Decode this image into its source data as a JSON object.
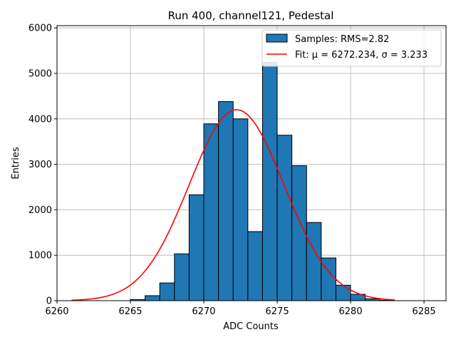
{
  "chart_data": {
    "type": "bar",
    "title": "Run 400, channel121, Pedestal",
    "xlabel": "ADC Counts",
    "ylabel": "Entries",
    "xlim": [
      6260,
      6286.5
    ],
    "ylim": [
      0,
      6050
    ],
    "xticks": [
      "6260",
      "6265",
      "6270",
      "6275",
      "6280",
      "6285"
    ],
    "yticks": [
      "0",
      "1000",
      "2000",
      "3000",
      "4000",
      "5000",
      "6000"
    ],
    "grid": true,
    "legend_position": "top-right",
    "bin_width": 1,
    "bins": [
      {
        "x0": 6264,
        "count": 0
      },
      {
        "x0": 6265,
        "count": 25
      },
      {
        "x0": 6266,
        "count": 110
      },
      {
        "x0": 6267,
        "count": 390
      },
      {
        "x0": 6268,
        "count": 1030
      },
      {
        "x0": 6269,
        "count": 2330
      },
      {
        "x0": 6270,
        "count": 3890
      },
      {
        "x0": 6271,
        "count": 4380
      },
      {
        "x0": 6272,
        "count": 4000
      },
      {
        "x0": 6273,
        "count": 1520
      },
      {
        "x0": 6274,
        "count": 5240
      },
      {
        "x0": 6275,
        "count": 3640
      },
      {
        "x0": 6276,
        "count": 2970
      },
      {
        "x0": 6277,
        "count": 1720
      },
      {
        "x0": 6278,
        "count": 940
      },
      {
        "x0": 6279,
        "count": 340
      },
      {
        "x0": 6280,
        "count": 140
      },
      {
        "x0": 6281,
        "count": 40
      },
      {
        "x0": 6282,
        "count": 10
      }
    ],
    "series": [
      {
        "name": "Samples: RMS=2.82",
        "kind": "histogram",
        "color": "#1f77b4"
      },
      {
        "name": "Fit: μ = 6272.234, σ = 3.233",
        "kind": "gaussian-fit",
        "color": "#ff0000",
        "mu": 6272.234,
        "sigma": 3.233,
        "amplitude": 4200,
        "x_range": [
          6261,
          6283
        ]
      }
    ]
  }
}
